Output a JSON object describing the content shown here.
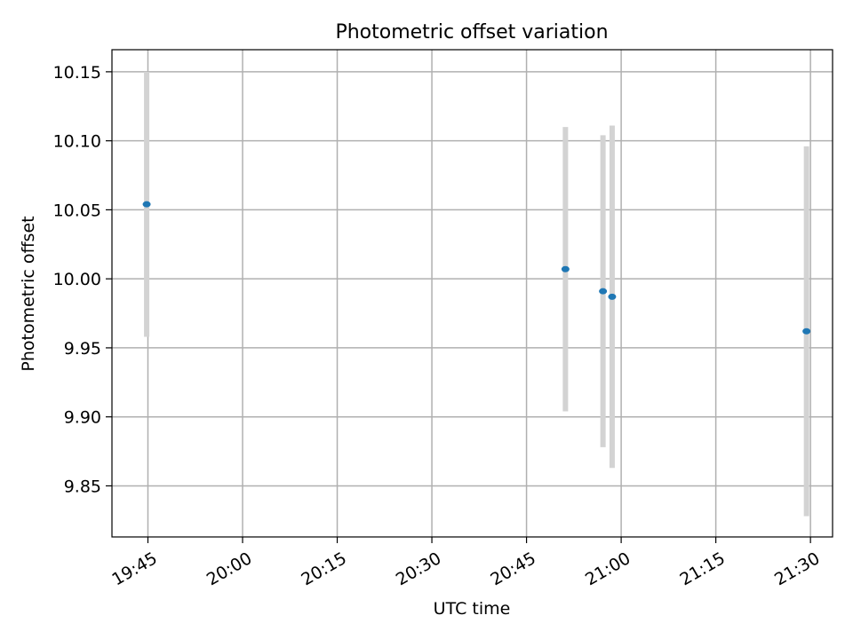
{
  "chart_data": {
    "type": "scatter",
    "title": "Photometric offset variation",
    "xlabel": "UTC time",
    "ylabel": "Photometric offset",
    "x_axis_type": "time",
    "xlim": [
      "19:39:18",
      "21:33:30"
    ],
    "ylim": [
      9.813,
      10.166
    ],
    "grid": true,
    "x_ticks": [
      "19:45",
      "20:00",
      "20:15",
      "20:30",
      "20:45",
      "21:00",
      "21:15",
      "21:30"
    ],
    "y_ticks": [
      "9.85",
      "9.90",
      "9.95",
      "10.00",
      "10.05",
      "10.10",
      "10.15"
    ],
    "series": [
      {
        "marker_color": "#1f77b4",
        "error_bar_color": "#d3d3d3",
        "points": [
          {
            "x": "19:44:48",
            "y": 10.054,
            "err": 0.096
          },
          {
            "x": "20:51:10",
            "y": 10.007,
            "err": 0.103
          },
          {
            "x": "20:57:07",
            "y": 9.991,
            "err": 0.113
          },
          {
            "x": "20:58:34",
            "y": 9.987,
            "err": 0.124
          },
          {
            "x": "21:29:22",
            "y": 9.962,
            "err": 0.134
          }
        ]
      }
    ]
  }
}
